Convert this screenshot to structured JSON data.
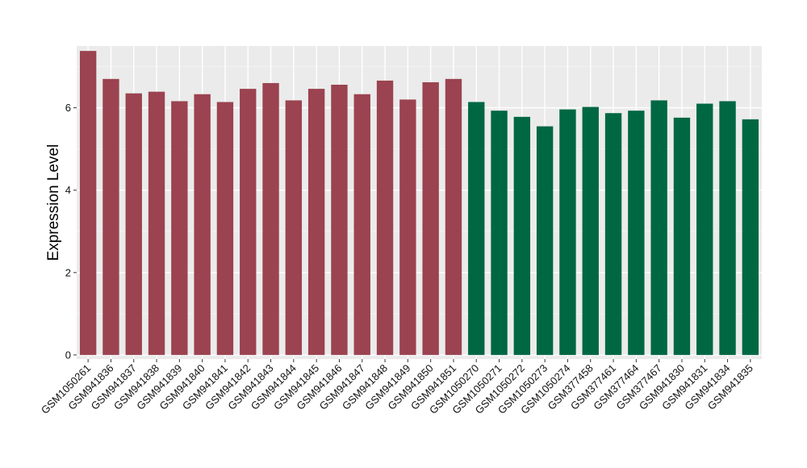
{
  "chart_data": {
    "type": "bar",
    "title": "",
    "xlabel": "",
    "ylabel": "Expression Level",
    "ylim": [
      -0.1,
      7.5
    ],
    "yticks": [
      0,
      2,
      4,
      6
    ],
    "grid": true,
    "legend": "none",
    "panel_background": "#ebebeb",
    "colors": {
      "group_a": "#9b4350",
      "group_b": "#006743"
    },
    "categories": [
      "GSM1050261",
      "GSM941836",
      "GSM941837",
      "GSM941838",
      "GSM941839",
      "GSM941840",
      "GSM941841",
      "GSM941842",
      "GSM941843",
      "GSM941844",
      "GSM941845",
      "GSM941846",
      "GSM941847",
      "GSM941848",
      "GSM941849",
      "GSM941850",
      "GSM941851",
      "GSM1050270",
      "GSM1050271",
      "GSM1050272",
      "GSM1050273",
      "GSM1050274",
      "GSM377458",
      "GSM377461",
      "GSM377464",
      "GSM377467",
      "GSM941830",
      "GSM941831",
      "GSM941834",
      "GSM941835"
    ],
    "values": [
      7.38,
      6.7,
      6.35,
      6.39,
      6.16,
      6.33,
      6.14,
      6.46,
      6.6,
      6.18,
      6.46,
      6.56,
      6.33,
      6.66,
      6.2,
      6.62,
      6.7,
      6.14,
      5.93,
      5.78,
      5.55,
      5.96,
      6.02,
      5.87,
      5.93,
      6.18,
      5.76,
      6.1,
      6.16,
      5.72
    ],
    "groups": [
      "a",
      "a",
      "a",
      "a",
      "a",
      "a",
      "a",
      "a",
      "a",
      "a",
      "a",
      "a",
      "a",
      "a",
      "a",
      "a",
      "a",
      "b",
      "b",
      "b",
      "b",
      "b",
      "b",
      "b",
      "b",
      "b",
      "b",
      "b",
      "b",
      "b"
    ]
  }
}
